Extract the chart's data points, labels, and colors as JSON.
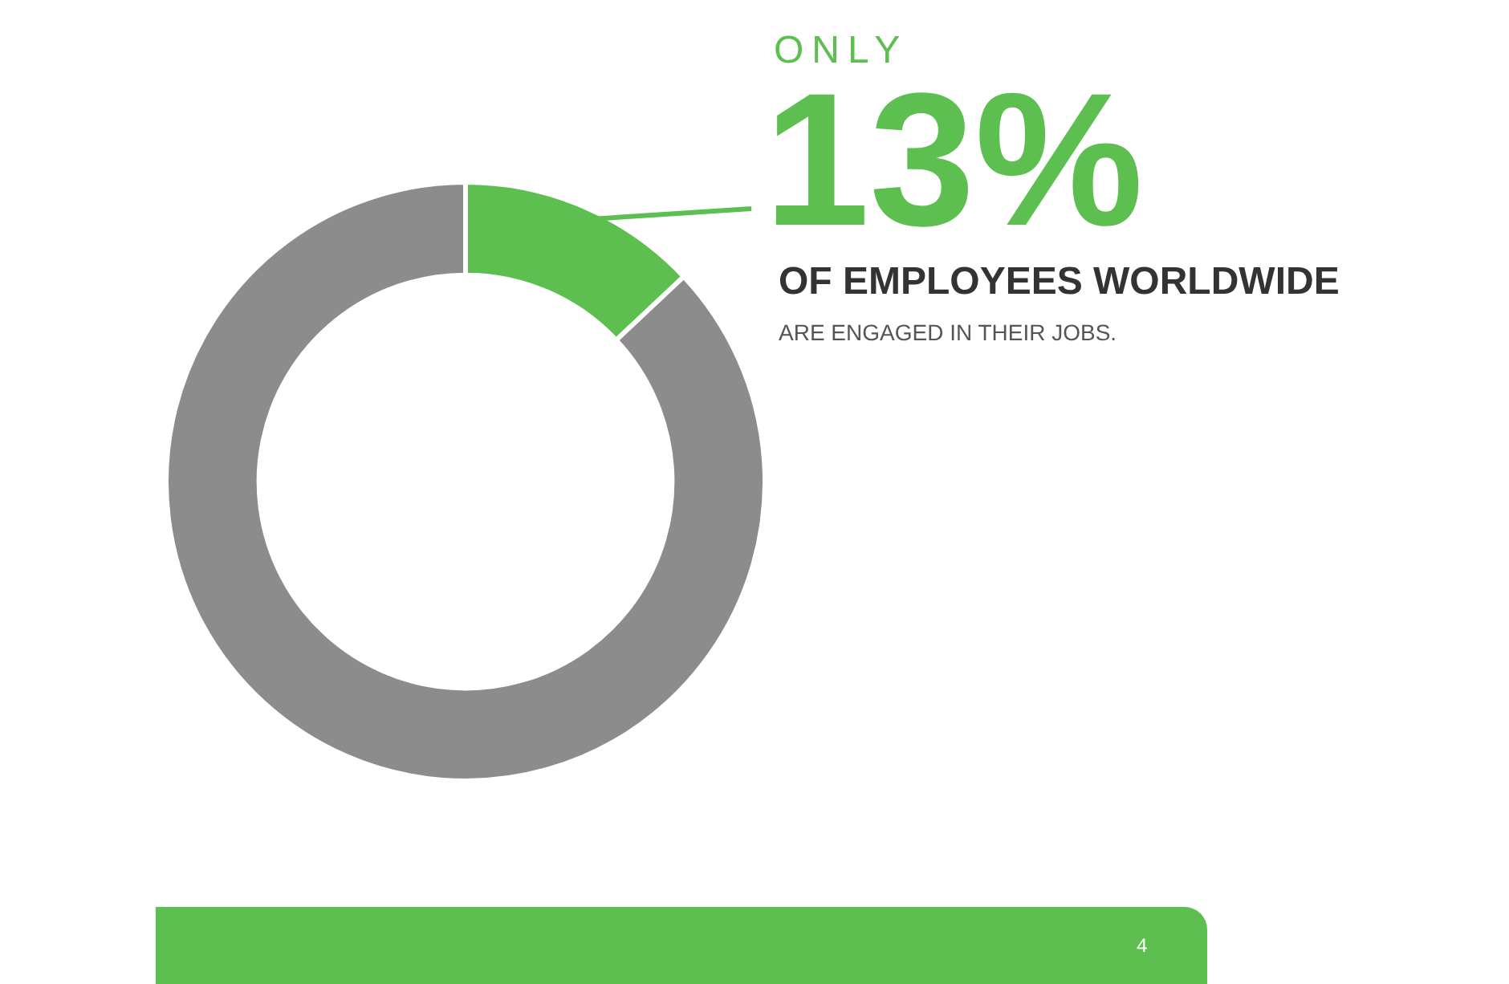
{
  "chart_data": {
    "type": "donut",
    "categories": [
      null,
      null
    ],
    "values": [
      13,
      87
    ],
    "colors": [
      "#5cbf4f",
      "#8c8c8c"
    ],
    "value_labels": [
      "13%",
      null
    ],
    "annotations": [
      "ONLY",
      "OF EMPLOYEES WORLDWIDE",
      "ARE ENGAGED IN THEIR JOBS.",
      "4"
    ]
  }
}
